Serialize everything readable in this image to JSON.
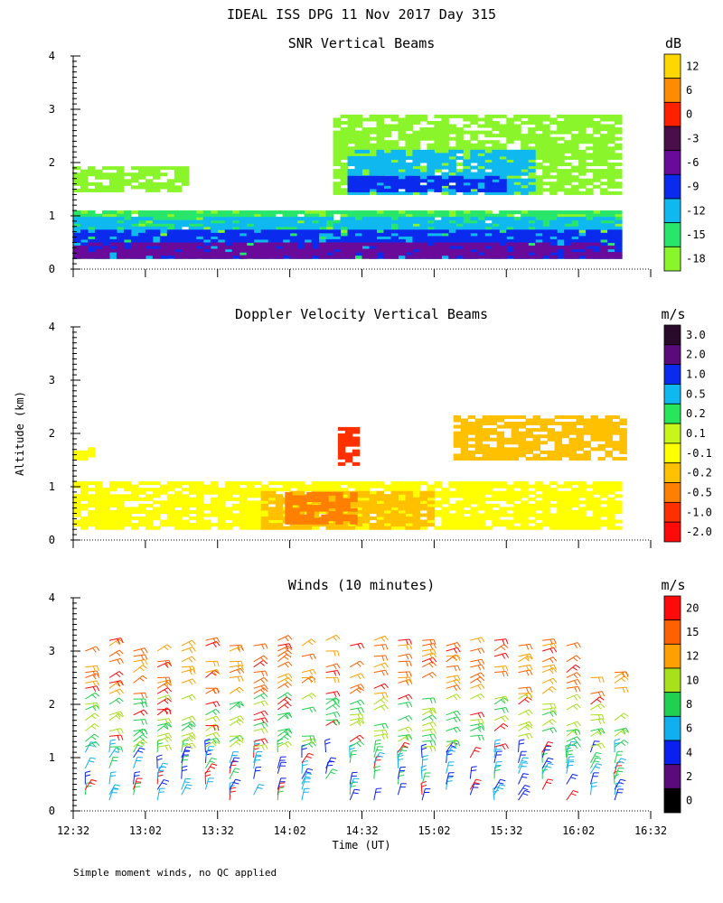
{
  "figure": {
    "title": "IDEAL ISS DPG  11 Nov 2017 Day 315",
    "ylabel": "Altitude (km)",
    "xlabel": "Time (UT)",
    "footer": "Simple moment winds, no QC applied"
  },
  "chart_data": [
    {
      "id": "snr",
      "type": "heatmap",
      "title": "SNR Vertical Beams",
      "ylim": [
        0,
        4
      ],
      "yticks": [
        "0",
        "1",
        "2",
        "3",
        "4"
      ],
      "xlim": [
        752,
        992
      ],
      "colorbar": {
        "unit": "dB",
        "labels": [
          "12",
          "6",
          "0",
          "-3",
          "-6",
          "-9",
          "-12",
          "-15",
          "-18"
        ],
        "colors": [
          "#ffd700",
          "#ff8c00",
          "#ff2000",
          "#4a0f4a",
          "#6a0a9a",
          "#0a2aee",
          "#10b8f0",
          "#28e66a",
          "#8af52a"
        ]
      },
      "layers": [
        {
          "level": "-18",
          "t0": 752,
          "t1": 980,
          "h0": 0.2,
          "h1": 1.1
        },
        {
          "level": "-15",
          "t0": 752,
          "t1": 980,
          "h0": 0.2,
          "h1": 1.05
        },
        {
          "level": "-12",
          "t0": 752,
          "t1": 980,
          "h0": 0.2,
          "h1": 0.95
        },
        {
          "level": "-9",
          "t0": 752,
          "t1": 980,
          "h0": 0.2,
          "h1": 0.7
        },
        {
          "level": "-6",
          "t0": 752,
          "t1": 980,
          "h0": 0.2,
          "h1": 0.5
        },
        {
          "level": "-18",
          "t0": 752,
          "t1": 800,
          "h0": 1.45,
          "h1": 1.9
        },
        {
          "level": "-18",
          "t0": 860,
          "t1": 980,
          "h0": 1.4,
          "h1": 2.9
        },
        {
          "level": "-12",
          "t0": 866,
          "t1": 944,
          "h0": 1.4,
          "h1": 2.2
        },
        {
          "level": "-9",
          "t0": 866,
          "t1": 930,
          "h0": 1.45,
          "h1": 1.75
        }
      ]
    },
    {
      "id": "doppler",
      "type": "heatmap",
      "title": "Doppler Velocity Vertical Beams",
      "ylim": [
        0,
        4
      ],
      "yticks": [
        "0",
        "1",
        "2",
        "3",
        "4"
      ],
      "xlim": [
        752,
        992
      ],
      "colorbar": {
        "unit": "m/s",
        "labels": [
          "3.0",
          "2.0",
          "1.0",
          "0.5",
          "0.2",
          "0.1",
          "-0.1",
          "-0.2",
          "-0.5",
          "-1.0",
          "-2.0"
        ],
        "colors": [
          "#2a0a2a",
          "#5a0a7a",
          "#0a2aee",
          "#10b8f0",
          "#28e65a",
          "#c8f51a",
          "#ffff00",
          "#ffc000",
          "#ff8000",
          "#ff3000",
          "#ff0a0a"
        ]
      },
      "layers": [
        {
          "level": "-0.1",
          "t0": 752,
          "t1": 980,
          "h0": 0.2,
          "h1": 1.1
        },
        {
          "level": "-0.2",
          "t0": 830,
          "t1": 900,
          "h0": 0.2,
          "h1": 0.9
        },
        {
          "level": "-0.5",
          "t0": 840,
          "t1": 870,
          "h0": 0.3,
          "h1": 0.9
        },
        {
          "level": "-1.0",
          "t0": 862,
          "t1": 870,
          "h0": 1.4,
          "h1": 2.1
        },
        {
          "level": "-0.2",
          "t0": 910,
          "t1": 980,
          "h0": 1.5,
          "h1": 2.3
        },
        {
          "level": "-0.1",
          "t0": 752,
          "t1": 760,
          "h0": 1.5,
          "h1": 1.7
        }
      ]
    },
    {
      "id": "winds",
      "type": "scatter",
      "title": "Winds (10 minutes)",
      "ylim": [
        0,
        4
      ],
      "yticks": [
        "0",
        "1",
        "2",
        "3",
        "4"
      ],
      "xlim": [
        752,
        992
      ],
      "xticks": [
        "12:32",
        "13:02",
        "13:32",
        "14:02",
        "14:32",
        "15:02",
        "15:32",
        "16:02",
        "16:32"
      ],
      "colorbar": {
        "unit": "m/s",
        "labels": [
          "20",
          "15",
          "12",
          "10",
          "8",
          "6",
          "4",
          "2",
          "0"
        ],
        "colors": [
          "#ff0a0a",
          "#ff6000",
          "#ffa000",
          "#a8e01a",
          "#20d050",
          "#10b0f0",
          "#0a20ee",
          "#5a0a7a",
          "#000000"
        ]
      },
      "profiles_start_min": 757,
      "profiles_step_min": 10,
      "profiles_count": 23
    }
  ]
}
